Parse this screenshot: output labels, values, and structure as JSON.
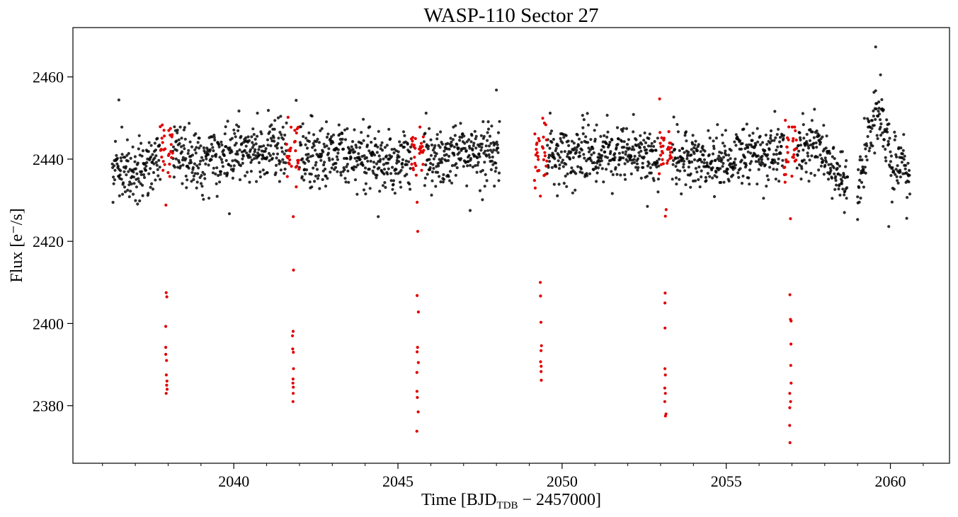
{
  "chart_data": {
    "type": "scatter",
    "title": "WASP-110 Sector 27",
    "xlabel": {
      "prefix": "Time [BJD",
      "subscript": "TDB",
      "suffix": " − 2457000]"
    },
    "ylabel": "Flux [e⁻/s]",
    "xlim": [
      2035.1,
      2061.8
    ],
    "ylim": [
      2366.0,
      2472.0
    ],
    "x_ticks": [
      2040,
      2045,
      2050,
      2055,
      2060
    ],
    "x_tick_labels": [
      "2040",
      "2045",
      "2050",
      "2055",
      "2060"
    ],
    "x_minor_step": 1,
    "y_ticks": [
      2380,
      2400,
      2420,
      2440,
      2460
    ],
    "y_tick_labels": [
      "2380",
      "2400",
      "2420",
      "2440",
      "2460"
    ],
    "grid": false,
    "legend": "none",
    "series": [
      {
        "color": "#000000",
        "segments": [
          {
            "x": [
              2036.3,
              2048.1
            ],
            "baseline": [
              [
                2036.3,
                2438.5
              ],
              [
                2037.0,
                2437.0
              ],
              [
                2038.0,
                2441.5
              ],
              [
                2039.0,
                2440.5
              ],
              [
                2040.0,
                2441.5
              ],
              [
                2041.0,
                2442.5
              ],
              [
                2042.0,
                2441.0
              ],
              [
                2043.0,
                2441.5
              ],
              [
                2044.0,
                2440.0
              ],
              [
                2045.0,
                2439.5
              ],
              [
                2046.0,
                2440.5
              ],
              [
                2047.0,
                2441.0
              ],
              [
                2048.1,
                2441.0
              ]
            ]
          },
          {
            "x": [
              2049.2,
              2058.7
            ],
            "baseline": [
              [
                2049.2,
                2443.5
              ],
              [
                2050.0,
                2440.5
              ],
              [
                2051.0,
                2441.5
              ],
              [
                2052.0,
                2442.5
              ],
              [
                2053.0,
                2440.0
              ],
              [
                2054.0,
                2439.5
              ],
              [
                2055.0,
                2440.0
              ],
              [
                2056.0,
                2441.0
              ],
              [
                2057.0,
                2442.5
              ],
              [
                2057.8,
                2443.0
              ],
              [
                2058.3,
                2438.0
              ],
              [
                2058.7,
                2433.0
              ]
            ]
          },
          {
            "x": [
              2059.0,
              2060.6
            ],
            "baseline": [
              [
                2059.0,
                2432.0
              ],
              [
                2059.3,
                2443.0
              ],
              [
                2059.55,
                2452.0
              ],
              [
                2059.8,
                2447.0
              ],
              [
                2060.1,
                2438.0
              ],
              [
                2060.6,
                2437.0
              ]
            ]
          }
        ],
        "scatter_sd": 3.6,
        "outliers": [
          [
            2036.5,
            2454.4
          ],
          [
            2041.9,
            2454.3
          ],
          [
            2048.0,
            2456.8
          ],
          [
            2044.4,
            2426.0
          ],
          [
            2059.55,
            2467.3
          ],
          [
            2059.7,
            2460.5
          ],
          [
            2059.0,
            2425.3
          ],
          [
            2059.95,
            2423.6
          ],
          [
            2047.2,
            2427.5
          ],
          [
            2052.6,
            2428.5
          ],
          [
            2058.6,
            2427.0
          ]
        ]
      },
      {
        "color": "#e00000",
        "transits": [
          {
            "x": 2037.95,
            "deep": [
              2407.5,
              2406.5,
              2399.3,
              2394.2,
              2392.5,
              2391.0,
              2387.5,
              2386.0,
              2385.0,
              2384.0,
              2383.0
            ],
            "mid": [
              2428.8
            ]
          },
          {
            "x": 2041.8,
            "deep": [
              2413.0,
              2398.1,
              2397.0,
              2393.8,
              2393.0,
              2389.0,
              2386.5,
              2385.5,
              2384.5,
              2383.0,
              2381.0
            ],
            "mid": [
              2426.0
            ]
          },
          {
            "x": 2045.6,
            "deep": [
              2406.8,
              2402.8,
              2394.2,
              2393.1,
              2390.5,
              2388.1,
              2383.5,
              2382.0,
              2378.5,
              2373.8
            ],
            "mid": [
              2422.4,
              2429.5
            ]
          },
          {
            "x": 2049.35,
            "deep": [
              2410.0,
              2406.7,
              2400.3,
              2394.6,
              2393.4,
              2390.7,
              2389.6,
              2388.3,
              2386.2
            ],
            "mid": [
              2431.0
            ]
          },
          {
            "x": 2053.15,
            "deep": [
              2407.4,
              2405.0,
              2398.9,
              2389.0,
              2387.5,
              2384.3,
              2383.0,
              2381.0,
              2378.0,
              2377.5
            ],
            "mid": [
              2426.1,
              2427.7
            ]
          },
          {
            "x": 2056.95,
            "deep": [
              2407.0,
              2401.0,
              2400.6,
              2395.0,
              2389.8,
              2385.5,
              2383.0,
              2381.0,
              2379.5,
              2375.2,
              2371.0
            ],
            "mid": [
              2425.5
            ]
          }
        ]
      }
    ]
  }
}
